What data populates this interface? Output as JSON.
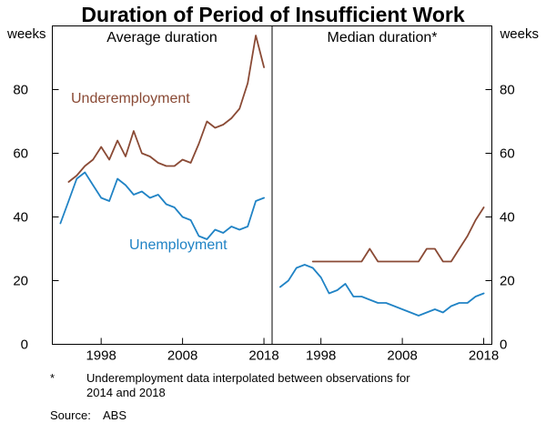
{
  "title": "Duration of Period of Insufficient Work",
  "axis": {
    "unit_left": "weeks",
    "unit_right": "weeks"
  },
  "panels": [
    {
      "label": "Average duration"
    },
    {
      "label": "Median duration*"
    }
  ],
  "series_labels": {
    "underemployment": "Underemployment",
    "unemployment": "Unemployment"
  },
  "footnote": {
    "marker": "*",
    "line1": "Underemployment data interpolated between observations for",
    "line2": "2014 and 2018"
  },
  "source": {
    "label": "Source:",
    "value": "ABS"
  },
  "colors": {
    "underemployment": "#8a4a35",
    "unemployment": "#2083c5",
    "axis": "#000000"
  },
  "chart_data": [
    {
      "type": "line",
      "title": "Average duration",
      "xlabel": "",
      "ylabel": "weeks",
      "xlim": [
        1992,
        2019
      ],
      "ylim": [
        0,
        100
      ],
      "x_ticks": [
        1998,
        2008,
        2018
      ],
      "y_ticks": [
        0,
        20,
        40,
        60,
        80
      ],
      "grid": false,
      "series": [
        {
          "name": "Underemployment",
          "color": "underemployment",
          "x": [
            1994,
            1995,
            1996,
            1997,
            1998,
            1999,
            2000,
            2001,
            2002,
            2003,
            2004,
            2005,
            2006,
            2007,
            2008,
            2009,
            2010,
            2011,
            2012,
            2013,
            2014,
            2015,
            2016,
            2017,
            2018
          ],
          "values": [
            51,
            53,
            56,
            58,
            62,
            58,
            64,
            59,
            67,
            60,
            59,
            57,
            56,
            56,
            58,
            57,
            63,
            70,
            68,
            69,
            71,
            74,
            82,
            97,
            87
          ]
        },
        {
          "name": "Unemployment",
          "color": "unemployment",
          "x": [
            1993,
            1994,
            1995,
            1996,
            1997,
            1998,
            1999,
            2000,
            2001,
            2002,
            2003,
            2004,
            2005,
            2006,
            2007,
            2008,
            2009,
            2010,
            2011,
            2012,
            2013,
            2014,
            2015,
            2016,
            2017,
            2018
          ],
          "values": [
            38,
            45,
            52,
            54,
            50,
            46,
            45,
            52,
            50,
            47,
            48,
            46,
            47,
            44,
            43,
            40,
            39,
            34,
            33,
            36,
            35,
            37,
            36,
            37,
            45,
            46
          ]
        }
      ]
    },
    {
      "type": "line",
      "title": "Median duration*",
      "xlabel": "",
      "ylabel": "weeks",
      "xlim": [
        1992,
        2019
      ],
      "ylim": [
        0,
        100
      ],
      "x_ticks": [
        1998,
        2008,
        2018
      ],
      "y_ticks": [
        0,
        20,
        40,
        60,
        80
      ],
      "grid": false,
      "series": [
        {
          "name": "Underemployment",
          "color": "underemployment",
          "x": [
            1997,
            1998,
            1999,
            2000,
            2001,
            2002,
            2003,
            2004,
            2005,
            2006,
            2007,
            2008,
            2009,
            2010,
            2011,
            2012,
            2013,
            2014,
            2015,
            2016,
            2017,
            2018
          ],
          "values": [
            26,
            26,
            26,
            26,
            26,
            26,
            26,
            30,
            26,
            26,
            26,
            26,
            26,
            26,
            30,
            30,
            26,
            26,
            30,
            34,
            39,
            43
          ]
        },
        {
          "name": "Unemployment",
          "color": "unemployment",
          "x": [
            1993,
            1994,
            1995,
            1996,
            1997,
            1998,
            1999,
            2000,
            2001,
            2002,
            2003,
            2004,
            2005,
            2006,
            2007,
            2008,
            2009,
            2010,
            2011,
            2012,
            2013,
            2014,
            2015,
            2016,
            2017,
            2018
          ],
          "values": [
            18,
            20,
            24,
            25,
            24,
            21,
            16,
            17,
            19,
            15,
            15,
            14,
            13,
            13,
            12,
            11,
            10,
            9,
            10,
            11,
            10,
            12,
            13,
            13,
            15,
            16
          ]
        }
      ]
    }
  ]
}
